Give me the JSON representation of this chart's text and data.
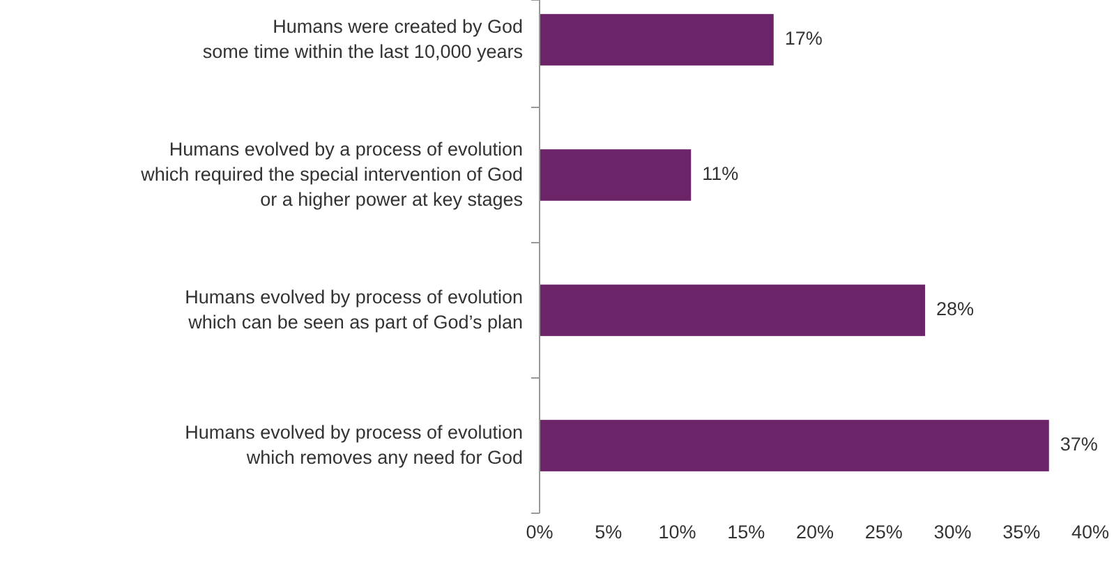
{
  "chart_data": {
    "type": "bar",
    "orientation": "horizontal",
    "categories": [
      "Humans were created by God\nsome time within the last 10,000 years",
      "Humans evolved by a process of evolution\nwhich required the special intervention of God\nor a higher power at key stages",
      "Humans evolved by process of evolution\nwhich can be seen as part of God’s plan",
      "Humans evolved by process of evolution\nwhich removes any need for God"
    ],
    "values": [
      17,
      11,
      28,
      37
    ],
    "value_labels": [
      "17%",
      "11%",
      "28%",
      "37%"
    ],
    "color": "#6b2468",
    "xlim": [
      0,
      40
    ],
    "xticks": [
      {
        "value": 0,
        "label": "0%"
      },
      {
        "value": 5,
        "label": "5%"
      },
      {
        "value": 10,
        "label": "10%"
      },
      {
        "value": 15,
        "label": "15%"
      },
      {
        "value": 20,
        "label": "20%"
      },
      {
        "value": 25,
        "label": "25%"
      },
      {
        "value": 30,
        "label": "30%"
      },
      {
        "value": 35,
        "label": "35%"
      },
      {
        "value": 40,
        "label": "40%"
      }
    ],
    "grid": false
  }
}
